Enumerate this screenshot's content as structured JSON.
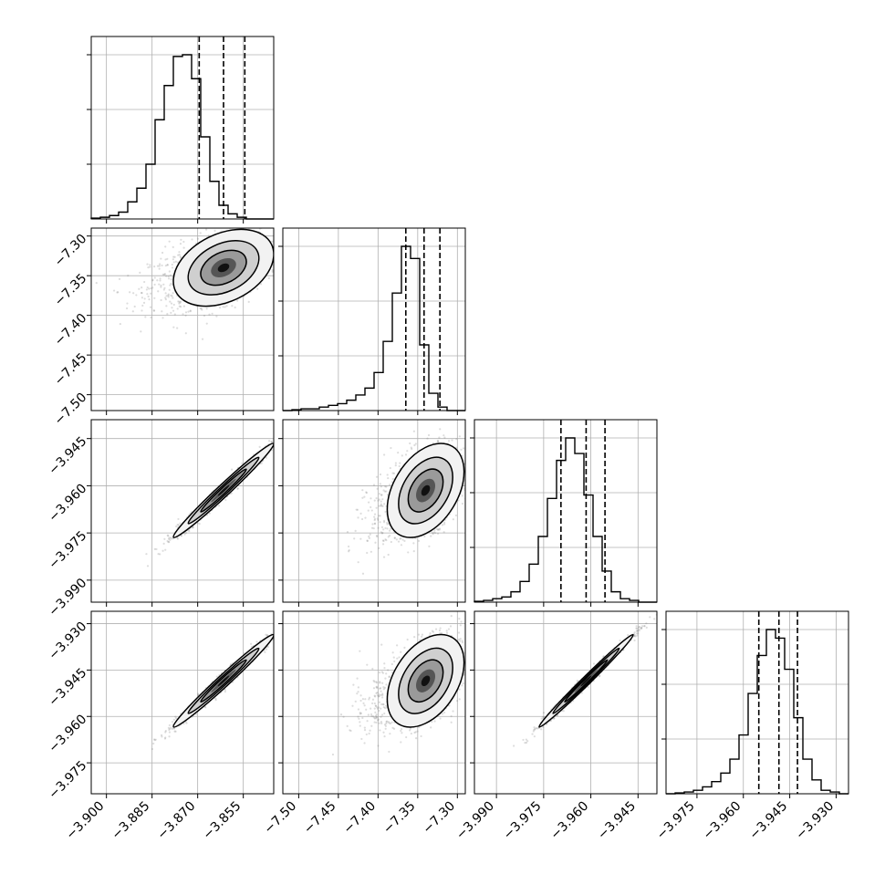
{
  "chart_data": {
    "type": "corner",
    "n_params": 4,
    "grid": true,
    "parameters": [
      {
        "range": [
          -3.905,
          -3.845
        ],
        "ticks": [
          -3.9,
          -3.885,
          -3.87,
          -3.855
        ],
        "tick_labels": [
          "−3.900",
          "−3.885",
          "−3.870",
          "−3.855"
        ],
        "quantiles": [
          -3.8695,
          -3.8615,
          -3.8545
        ],
        "hist_edges_start": -3.905,
        "hist_bin_width": 0.003,
        "hist_counts": [
          0.5,
          1,
          2,
          4,
          10,
          18,
          32,
          58,
          78,
          95,
          96,
          82,
          48,
          22,
          8,
          3,
          1,
          0,
          0,
          0
        ]
      },
      {
        "range": [
          -7.52,
          -7.29
        ],
        "ticks": [
          -7.5,
          -7.45,
          -7.4,
          -7.35,
          -7.3
        ],
        "tick_labels": [
          "−7.50",
          "−7.45",
          "−7.40",
          "−7.35",
          "−7.30"
        ],
        "quantiles": [
          -7.365,
          -7.342,
          -7.322
        ],
        "hist_edges_start": -7.52,
        "hist_bin_width": 0.0115,
        "hist_counts": [
          0,
          0.5,
          1,
          1,
          2,
          3,
          4,
          6,
          9,
          13,
          22,
          40,
          68,
          95,
          88,
          38,
          10,
          2,
          0,
          0
        ]
      },
      {
        "range": [
          -3.997,
          -3.939
        ],
        "ticks": [
          -3.99,
          -3.975,
          -3.96,
          -3.945
        ],
        "tick_labels": [
          "−3.990",
          "−3.975",
          "−3.960",
          "−3.945"
        ],
        "quantiles": [
          -3.9695,
          -3.9615,
          -3.9555
        ],
        "hist_edges_start": -3.997,
        "hist_bin_width": 0.0029,
        "hist_counts": [
          0.5,
          1,
          2,
          3,
          6,
          12,
          22,
          38,
          60,
          82,
          95,
          86,
          62,
          38,
          18,
          6,
          2,
          1,
          0,
          0
        ]
      },
      {
        "range": [
          -3.985,
          -3.926
        ],
        "ticks": [
          -3.975,
          -3.96,
          -3.945,
          -3.93
        ],
        "tick_labels": [
          "−3.975",
          "−3.960",
          "−3.945",
          "−3.930"
        ],
        "quantiles": [
          -3.955,
          -3.9485,
          -3.9425
        ],
        "hist_edges_start": -3.985,
        "hist_bin_width": 0.00295,
        "hist_counts": [
          0,
          0.5,
          1,
          2,
          4,
          7,
          12,
          20,
          34,
          58,
          80,
          95,
          90,
          72,
          44,
          20,
          8,
          2,
          1,
          0
        ]
      }
    ],
    "joint": [
      {
        "pair": [
          0,
          1
        ],
        "mean": [
          -3.8615,
          -7.34
        ],
        "sd": [
          0.0075,
          0.022
        ],
        "rho": 0.35
      },
      {
        "pair": [
          0,
          2
        ],
        "mean": [
          -3.8615,
          -3.9615
        ],
        "sd": [
          0.0075,
          0.0068
        ],
        "rho": 0.985
      },
      {
        "pair": [
          1,
          2
        ],
        "mean": [
          -7.34,
          -3.9615
        ],
        "sd": [
          0.022,
          0.0068
        ],
        "rho": 0.4
      },
      {
        "pair": [
          0,
          3
        ],
        "mean": [
          -3.8615,
          -3.9485
        ],
        "sd": [
          0.0075,
          0.0068
        ],
        "rho": 0.985
      },
      {
        "pair": [
          1,
          3
        ],
        "mean": [
          -7.34,
          -3.9485
        ],
        "sd": [
          0.022,
          0.0068
        ],
        "rho": 0.4
      },
      {
        "pair": [
          2,
          3
        ],
        "mean": [
          -3.9615,
          -3.9485
        ],
        "sd": [
          0.0068,
          0.0068
        ],
        "rho": 0.992
      }
    ]
  }
}
